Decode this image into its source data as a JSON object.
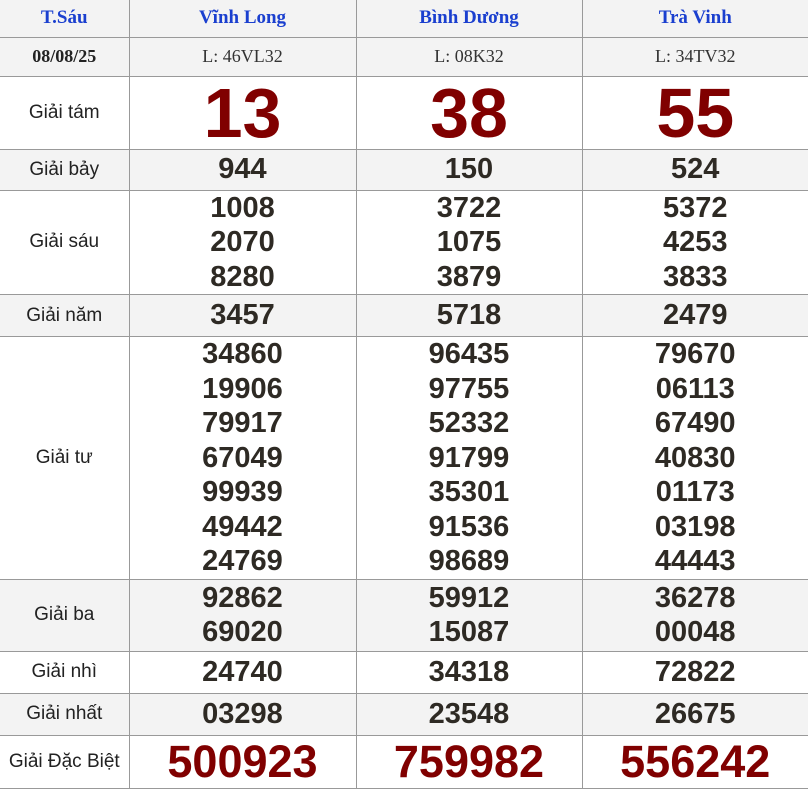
{
  "header": {
    "day": "T.Sáu",
    "provinces": [
      "Vĩnh Long",
      "Bình Dương",
      "Trà Vinh"
    ]
  },
  "info": {
    "date": "08/08/25",
    "lottery_codes": [
      "L: 46VL32",
      "L: 08K32",
      "L: 34TV32"
    ]
  },
  "prizes": [
    {
      "label": "Giải tám",
      "style": "big",
      "values": [
        [
          "13"
        ],
        [
          "38"
        ],
        [
          "55"
        ]
      ]
    },
    {
      "label": "Giải bảy",
      "style": "num",
      "values": [
        [
          "944"
        ],
        [
          "150"
        ],
        [
          "524"
        ]
      ]
    },
    {
      "label": "Giải sáu",
      "style": "num",
      "values": [
        [
          "1008",
          "2070",
          "8280"
        ],
        [
          "3722",
          "1075",
          "3879"
        ],
        [
          "5372",
          "4253",
          "3833"
        ]
      ]
    },
    {
      "label": "Giải năm",
      "style": "num",
      "values": [
        [
          "3457"
        ],
        [
          "5718"
        ],
        [
          "2479"
        ]
      ]
    },
    {
      "label": "Giải tư",
      "style": "num",
      "values": [
        [
          "34860",
          "19906",
          "79917",
          "67049",
          "99939",
          "49442",
          "24769"
        ],
        [
          "96435",
          "97755",
          "52332",
          "91799",
          "35301",
          "91536",
          "98689"
        ],
        [
          "79670",
          "06113",
          "67490",
          "40830",
          "01173",
          "03198",
          "44443"
        ]
      ]
    },
    {
      "label": "Giải ba",
      "style": "num",
      "values": [
        [
          "92862",
          "69020"
        ],
        [
          "59912",
          "15087"
        ],
        [
          "36278",
          "00048"
        ]
      ]
    },
    {
      "label": "Giải nhì",
      "style": "num",
      "values": [
        [
          "24740"
        ],
        [
          "34318"
        ],
        [
          "72822"
        ]
      ]
    },
    {
      "label": "Giải nhất",
      "style": "num",
      "values": [
        [
          "03298"
        ],
        [
          "23548"
        ],
        [
          "26675"
        ]
      ]
    },
    {
      "label": "Giải Đặc Biệt",
      "style": "db",
      "values": [
        [
          "500923"
        ],
        [
          "759982"
        ],
        [
          "556242"
        ]
      ]
    }
  ],
  "colors": {
    "header_text": "#1a3fcf",
    "highlight_number": "#800000",
    "number": "#2e2a24",
    "alt_row": "#f3f3f3"
  }
}
